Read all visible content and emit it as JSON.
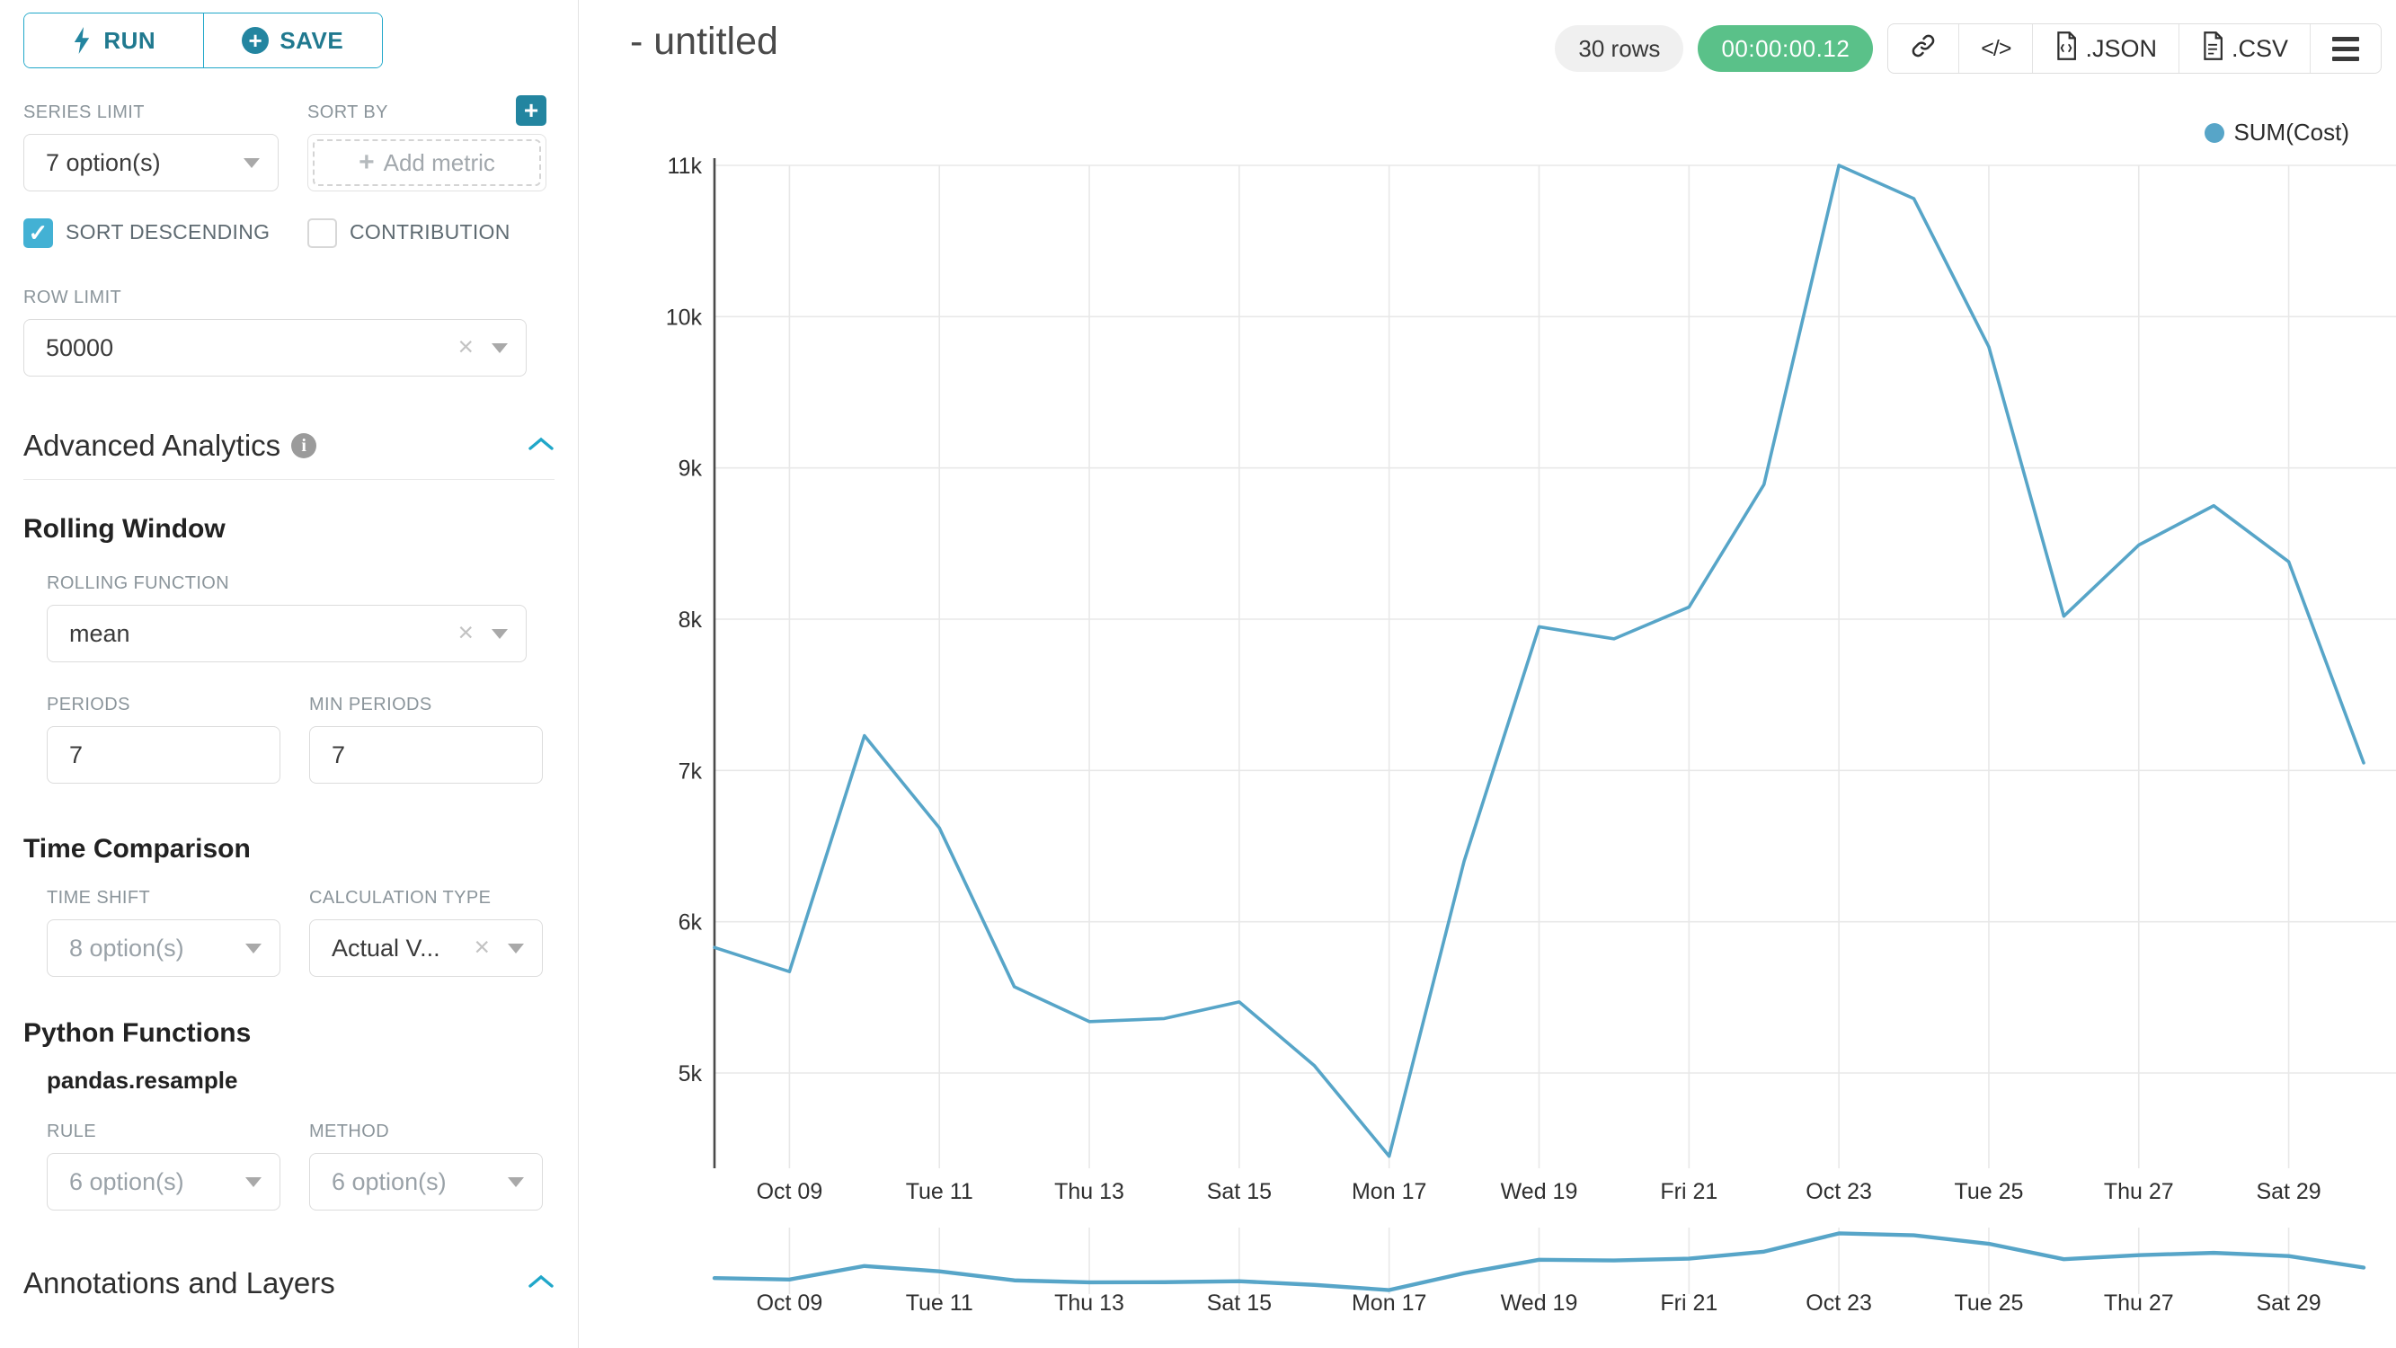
{
  "sidebar": {
    "run_label": "RUN",
    "save_label": "SAVE",
    "series_limit": {
      "label": "SERIES LIMIT",
      "value": "7 option(s)"
    },
    "sort_by": {
      "label": "SORT BY",
      "add_metric_label": "Add metric"
    },
    "sort_descending": {
      "label": "SORT DESCENDING",
      "checked": true
    },
    "contribution": {
      "label": "CONTRIBUTION",
      "checked": false
    },
    "row_limit": {
      "label": "ROW LIMIT",
      "value": "50000"
    },
    "advanced_analytics": {
      "title": "Advanced Analytics"
    },
    "rolling_window": {
      "title": "Rolling Window",
      "rolling_function": {
        "label": "ROLLING FUNCTION",
        "value": "mean"
      },
      "periods": {
        "label": "PERIODS",
        "value": "7"
      },
      "min_periods": {
        "label": "MIN PERIODS",
        "value": "7"
      }
    },
    "time_comparison": {
      "title": "Time Comparison",
      "time_shift": {
        "label": "TIME SHIFT",
        "placeholder": "8 option(s)"
      },
      "calculation_type": {
        "label": "CALCULATION TYPE",
        "value": "Actual V..."
      }
    },
    "python_functions": {
      "title": "Python Functions",
      "subtitle": "pandas.resample",
      "rule": {
        "label": "RULE",
        "placeholder": "6 option(s)"
      },
      "method": {
        "label": "METHOD",
        "placeholder": "6 option(s)"
      }
    },
    "annotations": {
      "title": "Annotations and Layers"
    }
  },
  "header": {
    "title": "- untitled",
    "rows_badge": "30 rows",
    "timer_badge": "00:00:00.12",
    "export_json_label": ".JSON",
    "export_csv_label": ".CSV"
  },
  "chart_data": {
    "type": "line",
    "title": "",
    "xlabel": "",
    "ylabel": "",
    "grid": true,
    "legend_position": "top-right",
    "legend": [
      {
        "name": "SUM(Cost)",
        "color": "#57a5c8"
      }
    ],
    "x": [
      "Oct 08",
      "Oct 09",
      "Oct 10",
      "Oct 11",
      "Oct 12",
      "Oct 13",
      "Oct 14",
      "Oct 15",
      "Oct 16",
      "Oct 17",
      "Oct 18",
      "Oct 19",
      "Oct 20",
      "Oct 21",
      "Oct 22",
      "Oct 23",
      "Oct 24",
      "Oct 25",
      "Oct 26",
      "Oct 27",
      "Oct 28",
      "Oct 29",
      "Oct 30"
    ],
    "series": [
      {
        "name": "SUM(Cost)",
        "values": [
          5830,
          5670,
          7230,
          6620,
          5570,
          5340,
          5360,
          5470,
          5050,
          4450,
          6400,
          7950,
          7870,
          8080,
          8890,
          11000,
          10780,
          9800,
          8020,
          8490,
          8750,
          8380,
          7050
        ]
      }
    ],
    "x_tick_labels": [
      "Oct 09",
      "Tue 11",
      "Thu 13",
      "Sat 15",
      "Mon 17",
      "Wed 19",
      "Fri 21",
      "Oct 23",
      "Tue 25",
      "Thu 27",
      "Sat 29"
    ],
    "x_tick_indices": [
      1,
      3,
      5,
      7,
      9,
      11,
      13,
      15,
      17,
      19,
      21
    ],
    "y_ticks": [
      5000,
      6000,
      7000,
      8000,
      9000,
      10000,
      11000
    ],
    "y_tick_labels": [
      "5k",
      "6k",
      "7k",
      "8k",
      "9k",
      "10k",
      "11k"
    ],
    "ylim": [
      4400,
      11050
    ],
    "has_mini_preview": true,
    "colors": {
      "line": "#57a5c8",
      "gridline": "#e8e8e8",
      "axis": "#4a4a4a",
      "tick_text": "#2f2f2f"
    }
  }
}
